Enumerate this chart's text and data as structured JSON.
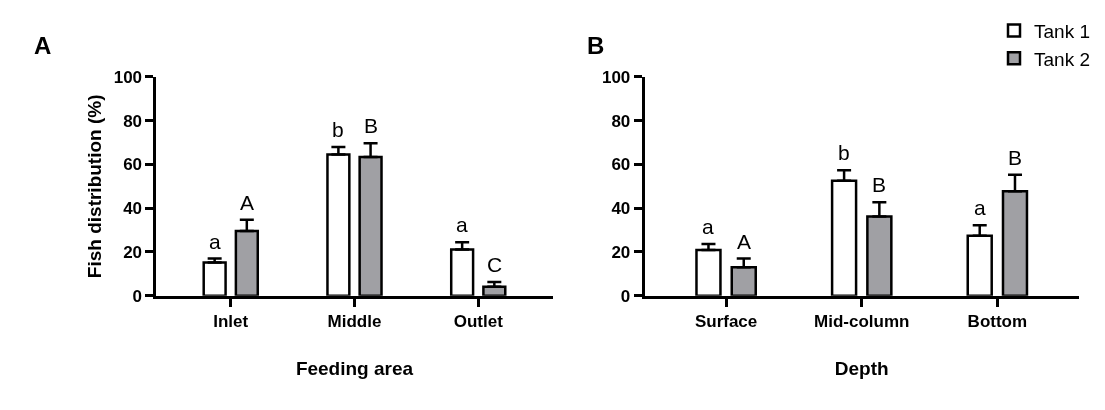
{
  "chart_data": [
    {
      "type": "bar",
      "title": "A",
      "xlabel": "Feeding area",
      "ylabel": "Fish distribution (%)",
      "categories": [
        "Inlet",
        "Middle",
        "Outlet"
      ],
      "ylim": [
        0,
        100
      ],
      "yticks": [
        0,
        20,
        40,
        60,
        80,
        100
      ],
      "series": [
        {
          "color": "#ffffff",
          "values": [
            15.2,
            64.5,
            21.1
          ],
          "errors": [
            [
              15.2,
              17.0
            ],
            [
              64.5,
              68.0
            ],
            [
              21.1,
              24.5
            ]
          ],
          "value_labels": [
            "a",
            "b",
            "a"
          ]
        },
        {
          "color": "#a0a0a4",
          "values": [
            29.6,
            63.4,
            4.1
          ],
          "errors": [
            [
              29.6,
              34.7
            ],
            [
              63.4,
              69.7
            ],
            [
              4.1,
              6.3
            ]
          ],
          "value_labels": [
            "A",
            "B",
            "C"
          ]
        }
      ]
    },
    {
      "type": "bar",
      "title": "B",
      "xlabel": "Depth",
      "categories": [
        "Surface",
        "Mid-column",
        "Bottom"
      ],
      "ylim": [
        0,
        100
      ],
      "yticks": [
        0,
        20,
        40,
        60,
        80,
        100
      ],
      "legend": "top right",
      "series": [
        {
          "name": "Tank 1",
          "color": "#ffffff",
          "values": [
            20.9,
            52.6,
            27.4
          ],
          "errors": [
            [
              20.9,
              23.6
            ],
            [
              52.6,
              57.3
            ],
            [
              27.4,
              32.2
            ]
          ],
          "value_labels": [
            "a",
            "b",
            "a"
          ]
        },
        {
          "name": "Tank 2",
          "color": "#a0a0a4",
          "values": [
            13.0,
            36.2,
            47.7
          ],
          "errors": [
            [
              13.0,
              17.0
            ],
            [
              36.2,
              42.7
            ],
            [
              47.7,
              55.3
            ]
          ],
          "value_labels": [
            "A",
            "B",
            "B"
          ]
        }
      ]
    }
  ]
}
